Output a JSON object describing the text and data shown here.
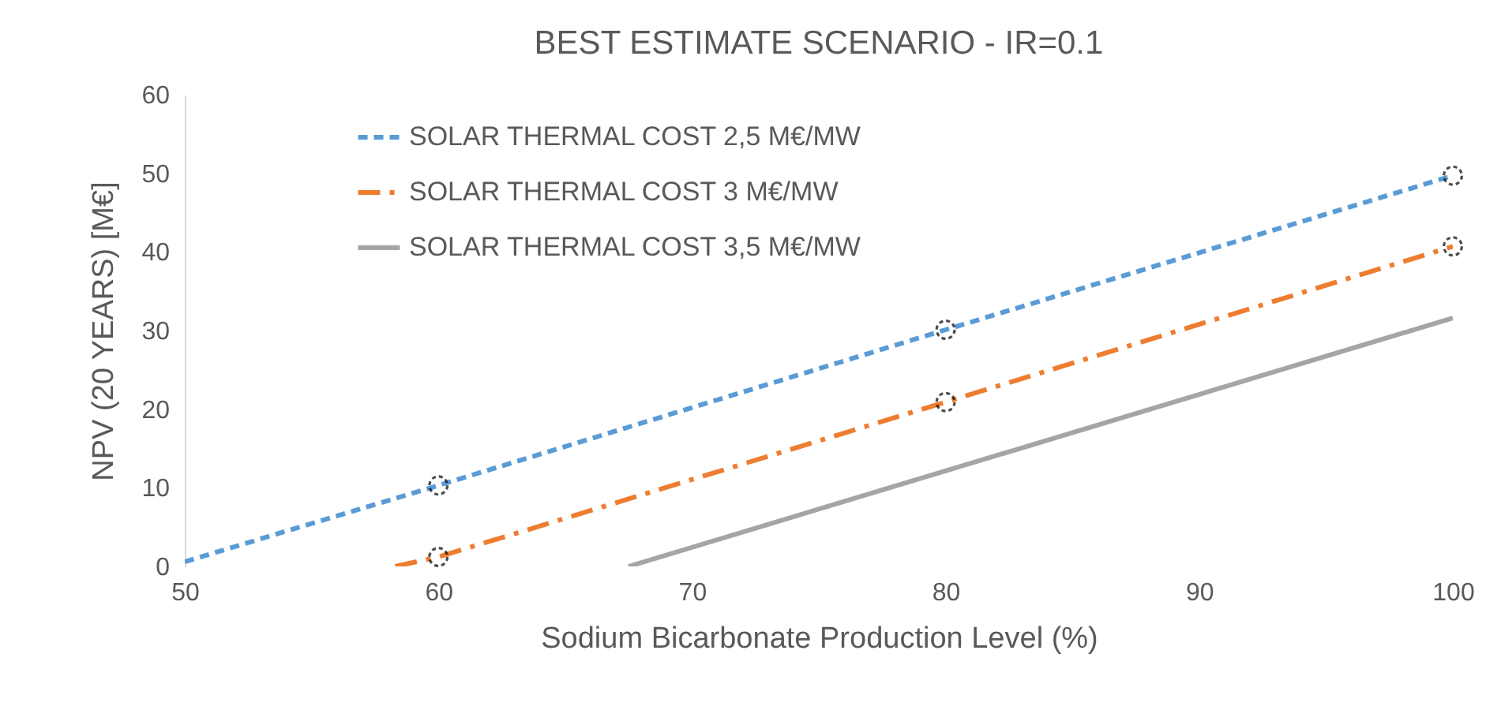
{
  "chart_data": {
    "type": "line",
    "title": "BEST ESTIMATE SCENARIO - IR=0.1",
    "xlabel": "Sodium Bicarbonate Production Level (%)",
    "ylabel": "NPV (20 YEARS) [M€]",
    "xlim": [
      50,
      100
    ],
    "xticks": [
      50,
      60,
      70,
      80,
      90,
      100
    ],
    "ylim": [
      0,
      60
    ],
    "yticks": [
      0,
      10,
      20,
      30,
      40,
      50,
      60
    ],
    "legend": "top left",
    "series": [
      {
        "name": "SOLAR THERMAL COST 2,5 M€/MW",
        "color": "#5b9bd5",
        "line_style": "dashed",
        "x": [
          50,
          60,
          80,
          100
        ],
        "values": [
          0.6,
          10.3,
          30.1,
          49.7
        ]
      },
      {
        "name": "SOLAR THERMAL COST 3 M€/MW",
        "color": "#ed7d31",
        "line_style": "dashdot",
        "x": [
          58.3,
          60,
          80,
          100
        ],
        "values": [
          0,
          1.2,
          20.9,
          40.7
        ]
      },
      {
        "name": "SOLAR THERMAL COST 3,5 M€/MW",
        "color": "#a5a5a5",
        "line_style": "solid",
        "x": [
          67.5,
          100
        ],
        "values": [
          0,
          31.6
        ]
      },
      {
        "type": "scatter",
        "color": "#000000",
        "marker": "circle",
        "x": [
          60,
          80,
          100
        ],
        "values": [
          10.3,
          30.1,
          49.7
        ]
      },
      {
        "type": "scatter",
        "color": "#000000",
        "marker": "circle",
        "x": [
          60,
          80,
          100
        ],
        "values": [
          1.2,
          20.9,
          40.7
        ]
      }
    ]
  }
}
